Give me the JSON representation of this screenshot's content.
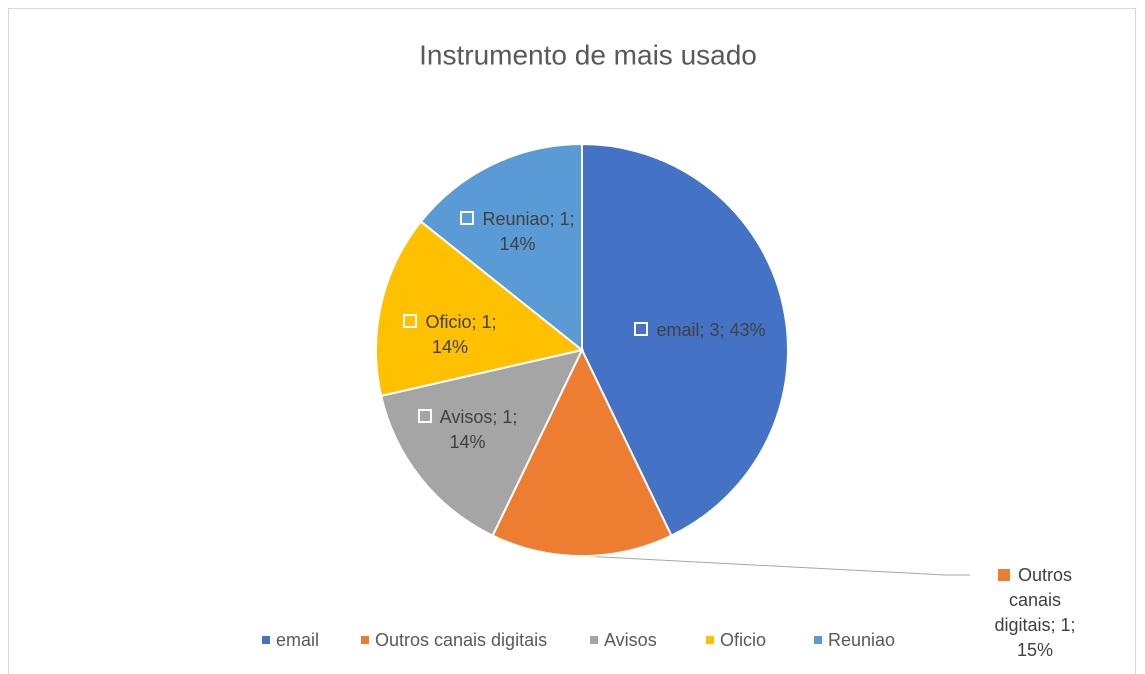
{
  "chart_data": {
    "type": "pie",
    "title": "Instrumento de mais usado",
    "categories": [
      "email",
      "Outros canais digitais",
      "Avisos",
      "Oficio",
      "Reuniao"
    ],
    "values": [
      3,
      1,
      1,
      1,
      1
    ],
    "value_labels": [
      "email; 3; 43%",
      "Outros canais digitais; 1; 15%",
      "Avisos; 1; 14%",
      "Oficio; 1; 14%",
      "Reuniao; 1; 14%"
    ],
    "colors": [
      "#4472c4",
      "#ed7d31",
      "#a5a5a5",
      "#ffc000",
      "#5b9bd5"
    ],
    "legend": "bottom"
  }
}
